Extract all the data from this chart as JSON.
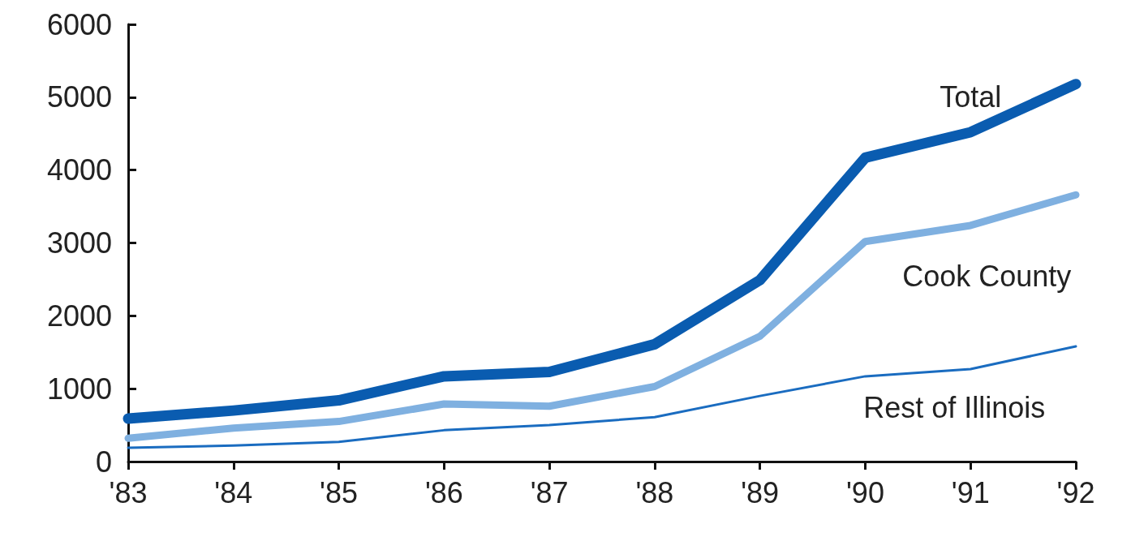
{
  "chart_data": {
    "type": "line",
    "categories": [
      "'83",
      "'84",
      "'85",
      "'86",
      "'87",
      "'88",
      "'89",
      "'90",
      "'91",
      "'92"
    ],
    "series": [
      {
        "name": "Total",
        "color": "#0a5cb0",
        "values": [
          590,
          700,
          840,
          1170,
          1230,
          1610,
          2490,
          4170,
          4520,
          5180
        ]
      },
      {
        "name": "Cook County",
        "color": "#7fb0e0",
        "values": [
          320,
          460,
          550,
          790,
          760,
          1030,
          1720,
          3020,
          3240,
          3660
        ]
      },
      {
        "name": "Rest of Illinois",
        "color": "#1a6cc0",
        "values": [
          190,
          220,
          270,
          430,
          500,
          610,
          900,
          1170,
          1270,
          1580
        ]
      }
    ],
    "ylim": [
      0,
      6000
    ],
    "yticks": [
      0,
      1000,
      2000,
      3000,
      4000,
      5000,
      6000
    ],
    "grid": false,
    "legend": false,
    "marker": "none",
    "line_style": "solid"
  }
}
